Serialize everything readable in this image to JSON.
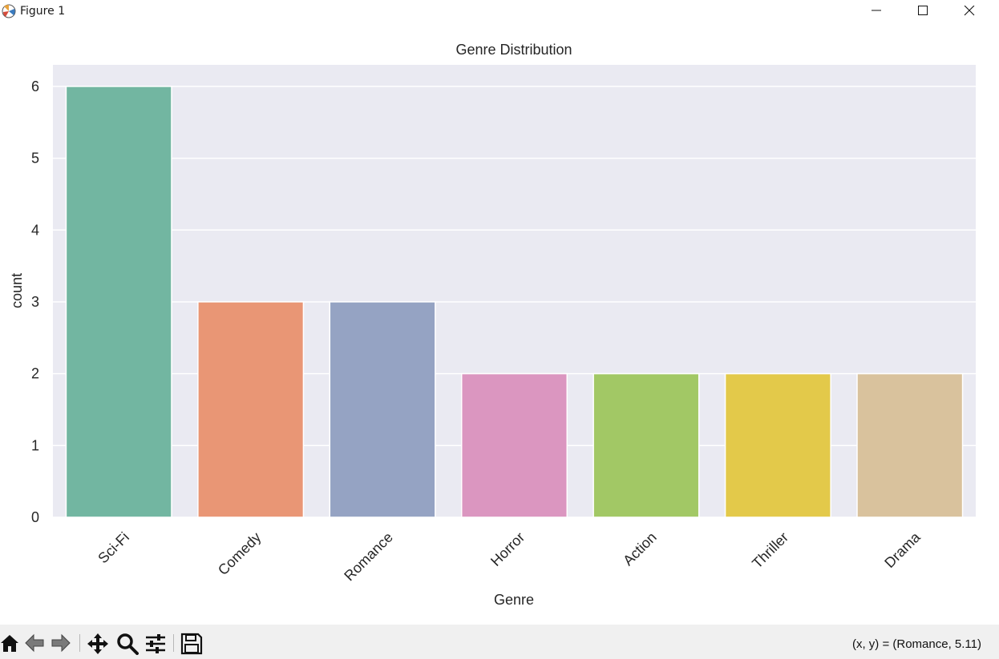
{
  "window": {
    "title": "Figure 1"
  },
  "toolbar": {
    "tools": [
      "home-icon",
      "back-icon",
      "forward-icon",
      "pan-icon",
      "zoom-icon",
      "configure-icon",
      "save-icon"
    ],
    "coords_text": "(x, y) = (Romance, 5.11)"
  },
  "chart_data": {
    "type": "bar",
    "title": "Genre Distribution",
    "xlabel": "Genre",
    "ylabel": "count",
    "categories": [
      "Sci-Fi",
      "Comedy",
      "Romance",
      "Horror",
      "Action",
      "Thriller",
      "Drama"
    ],
    "values": [
      6,
      3,
      3,
      2,
      2,
      2,
      2
    ],
    "colors": [
      "#72b6a1",
      "#e99675",
      "#95a3c3",
      "#db96c0",
      "#a2c865",
      "#e3c94a",
      "#d9c29d"
    ],
    "yticks": [
      "0",
      "1",
      "2",
      "3",
      "4",
      "5",
      "6"
    ],
    "ylim": [
      0,
      6.3
    ],
    "grid": true,
    "background": "#eaeaf2"
  }
}
